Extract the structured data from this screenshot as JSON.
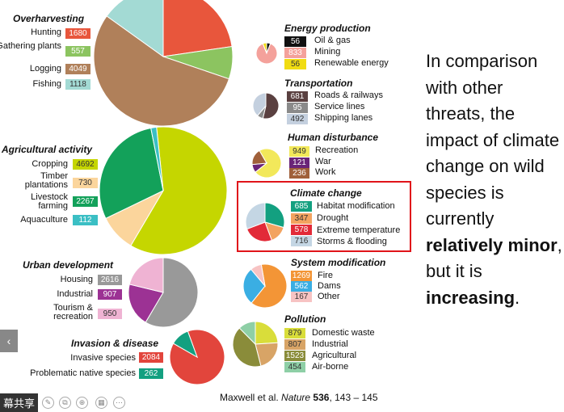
{
  "side_text": {
    "part1": "In comparison with other threats, the impact of climate change on wild species is currently ",
    "bold1": "relatively minor",
    "part2": ", but it is ",
    "bold2": "increasing",
    "part3": "."
  },
  "citation": {
    "pre": "Maxwell et al. ",
    "journal": "Nature",
    "vol": "536",
    "pages": ", 143 – 145"
  },
  "toolbar": {
    "share_label": "幕共享",
    "prev_icon": "chevron-left-icon"
  },
  "chart_data": {
    "type": "pie",
    "groups": [
      {
        "id": "overharvesting",
        "title": "Overharvesting",
        "items": [
          {
            "label": "Hunting",
            "value": 1680,
            "color": "#e8563c"
          },
          {
            "label": "Gathering plants",
            "value": 557,
            "color": "#8cc460"
          },
          {
            "label": "Logging",
            "value": 4049,
            "color": "#b0805a"
          },
          {
            "label": "Fishing",
            "value": 1118,
            "color": "#a3dad4"
          }
        ]
      },
      {
        "id": "agriculture",
        "title": "Agricultural activity",
        "items": [
          {
            "label": "Cropping",
            "value": 4692,
            "color": "#c5d600"
          },
          {
            "label": "Timber plantations",
            "value": 730,
            "color": "#fbd59c"
          },
          {
            "label": "Livestock farming",
            "value": 2267,
            "color": "#13a15a"
          },
          {
            "label": "Aquaculture",
            "value": 112,
            "color": "#3bbfc4"
          }
        ]
      },
      {
        "id": "urban",
        "title": "Urban development",
        "items": [
          {
            "label": "Housing",
            "value": 2616,
            "color": "#999999"
          },
          {
            "label": "Industrial",
            "value": 907,
            "color": "#9c3294"
          },
          {
            "label": "Tourism & recreation",
            "value": 950,
            "color": "#efb3d3"
          }
        ]
      },
      {
        "id": "invasion",
        "title": "Invasion & disease",
        "items": [
          {
            "label": "Invasive species",
            "value": 2084,
            "color": "#e2453c"
          },
          {
            "label": "Problematic native species",
            "value": 262,
            "color": "#13a080"
          }
        ]
      },
      {
        "id": "energy",
        "title": "Energy production",
        "items": [
          {
            "label": "Oil & gas",
            "value": 56,
            "color": "#111111"
          },
          {
            "label": "Mining",
            "value": 833,
            "color": "#f4a19b"
          },
          {
            "label": "Renewable energy",
            "value": 56,
            "color": "#f1dc12"
          }
        ]
      },
      {
        "id": "transport",
        "title": "Transportation",
        "items": [
          {
            "label": "Roads & railways",
            "value": 681,
            "color": "#5a4040"
          },
          {
            "label": "Service lines",
            "value": 95,
            "color": "#8a8a8a"
          },
          {
            "label": "Shipping lanes",
            "value": 492,
            "color": "#c4d0df"
          }
        ]
      },
      {
        "id": "disturbance",
        "title": "Human disturbance",
        "items": [
          {
            "label": "Recreation",
            "value": 949,
            "color": "#f2e85a"
          },
          {
            "label": "War",
            "value": 121,
            "color": "#6a2478"
          },
          {
            "label": "Work",
            "value": 236,
            "color": "#a0603a"
          }
        ]
      },
      {
        "id": "climate",
        "title": "Climate change",
        "items": [
          {
            "label": "Habitat modification",
            "value": 685,
            "color": "#13a080"
          },
          {
            "label": "Drought",
            "value": 347,
            "color": "#f3a360"
          },
          {
            "label": "Extreme temperature",
            "value": 578,
            "color": "#e22a38"
          },
          {
            "label": "Storms & flooding",
            "value": 716,
            "color": "#c4d6e4"
          }
        ]
      },
      {
        "id": "system",
        "title": "System modification",
        "items": [
          {
            "label": "Fire",
            "value": 1269,
            "color": "#f39536"
          },
          {
            "label": "Dams",
            "value": 562,
            "color": "#3aaee3"
          },
          {
            "label": "Other",
            "value": 167,
            "color": "#f7c3c3"
          }
        ]
      },
      {
        "id": "pollution",
        "title": "Pollution",
        "items": [
          {
            "label": "Domestic waste",
            "value": 879,
            "color": "#d9dd3a"
          },
          {
            "label": "Industrial",
            "value": 807,
            "color": "#d8a466"
          },
          {
            "label": "Agricultural",
            "value": 1523,
            "color": "#8a8c3a"
          },
          {
            "label": "Air-borne",
            "value": 454,
            "color": "#8ecfa6"
          }
        ]
      }
    ]
  }
}
